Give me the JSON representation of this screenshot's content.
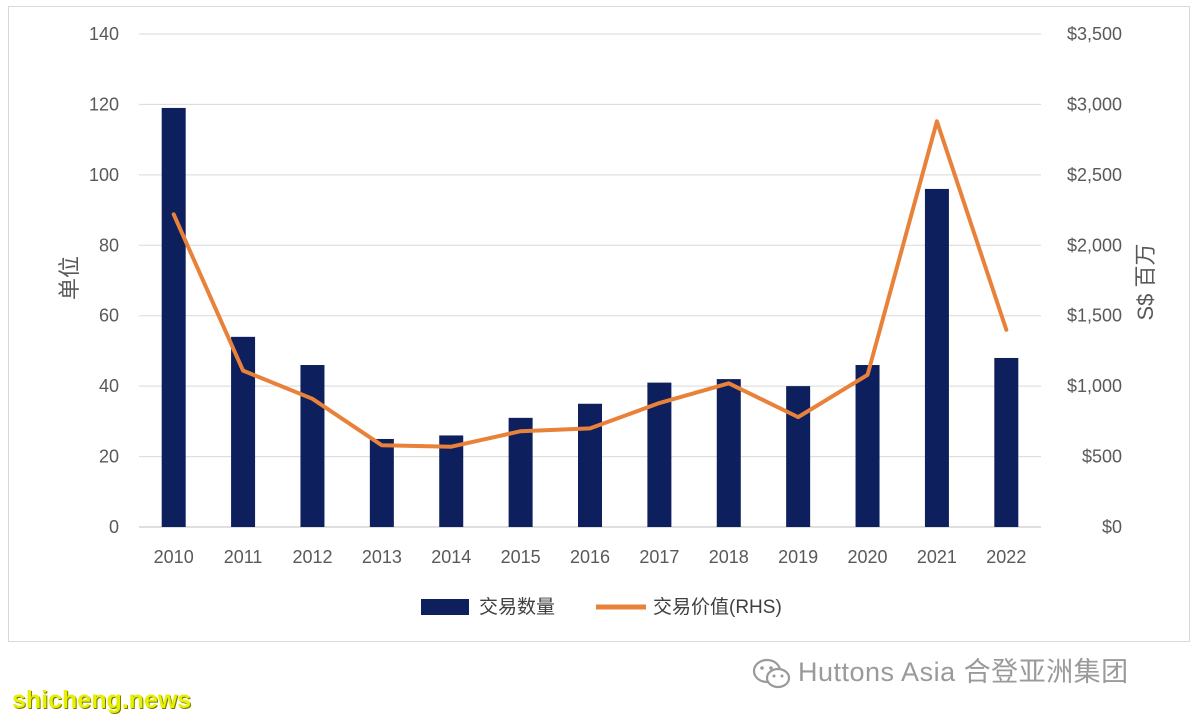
{
  "chart_data": {
    "type": "bar",
    "categories": [
      "2010",
      "2011",
      "2012",
      "2013",
      "2014",
      "2015",
      "2016",
      "2017",
      "2018",
      "2019",
      "2020",
      "2021",
      "2022"
    ],
    "series": [
      {
        "name": "交易数量",
        "type": "bar",
        "axis": "left",
        "values": [
          119,
          54,
          46,
          25,
          26,
          31,
          35,
          41,
          42,
          40,
          46,
          96,
          48
        ],
        "color": "#0d1f5c"
      },
      {
        "name": "交易价值(RHS)",
        "type": "line",
        "axis": "right",
        "values": [
          2220,
          1110,
          910,
          580,
          570,
          680,
          700,
          880,
          1020,
          780,
          1080,
          2880,
          1400
        ],
        "color": "#e8823a"
      }
    ],
    "ylabel": "单位",
    "y2label": "S$ 百万",
    "ylim": [
      0,
      140
    ],
    "yticks": [
      "0",
      "20",
      "40",
      "60",
      "80",
      "100",
      "120",
      "140"
    ],
    "y2lim": [
      0,
      3500
    ],
    "y2ticks": [
      "$0",
      "$500",
      "$1,000",
      "$1,500",
      "$2,000",
      "$2,500",
      "$3,000",
      "$3,500"
    ],
    "grid": true,
    "legend": "bottom-center"
  },
  "watermark": "Huttons Asia 合登亚洲集团",
  "site_tag": "shicheng.news",
  "icon": "wechat-icon"
}
